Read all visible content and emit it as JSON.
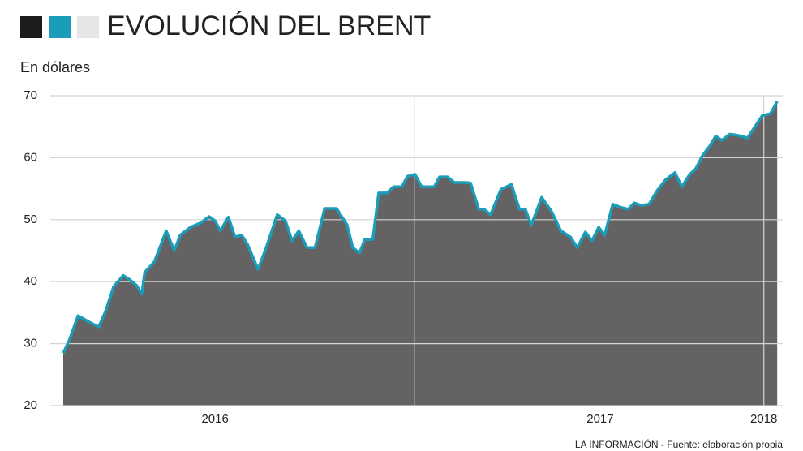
{
  "chart_data": {
    "type": "area",
    "title": "EVOLUCIÓN DEL BRENT",
    "subtitle": "En dólares",
    "source": "LA INFORMACIÓN - Fuente: elaboración propia",
    "color": "#1b9dba",
    "fill": "#656264",
    "x": [
      0,
      0.8,
      2.0,
      3.5,
      4.8,
      5.7,
      6.8,
      8.1,
      9.0,
      9.9,
      10.6,
      11.0,
      12.3,
      13.9,
      15.0,
      15.8,
      17.2,
      18.6,
      19.7,
      20.5,
      21.2,
      22.3,
      23.2,
      24.1,
      24.9,
      26.3,
      27.4,
      28.9,
      30.0,
      30.9,
      31.8,
      32.9,
      34.0,
      35.3,
      36.9,
      38.3,
      39.1,
      40.0,
      40.7,
      41.8,
      42.6,
      43.7,
      44.6,
      45.7,
      46.5,
      47.5,
      48.4,
      50.1,
      50.8,
      51.9,
      52.8,
      54.4,
      55.0,
      56.1,
      56.8,
      57.7,
      59.1,
      60.5,
      61.6,
      62.4,
      63.2,
      64.6,
      65.9,
      67.2,
      68.5,
      69.4,
      70.5,
      71.4,
      72.3,
      73.1,
      74.2,
      75.2,
      76.3,
      77.1,
      78.0,
      79.1,
      80.2,
      81.3,
      82.6,
      83.5,
      84.6,
      85.4,
      86.3,
      87.3,
      88.1,
      88.9,
      90.0,
      91.1,
      92.4,
      93.5,
      94.4,
      95.5,
      96.4
    ],
    "values": [
      28.5,
      30.5,
      34.5,
      33.5,
      32.7,
      35.2,
      39.2,
      41,
      40.3,
      39.4,
      38,
      41.5,
      43.2,
      48.2,
      45,
      47.5,
      48.8,
      49.5,
      50.5,
      49.8,
      48.2,
      50.4,
      47.2,
      47.5,
      46,
      42,
      45.5,
      50.8,
      49.8,
      46.6,
      48.2,
      45.5,
      45.5,
      51.8,
      51.8,
      49.2,
      45.5,
      44.6,
      46.8,
      46.8,
      54.3,
      54.3,
      55.3,
      55.3,
      57,
      57.3,
      55.3,
      55.3,
      56.9,
      56.9,
      56,
      56,
      55.9,
      51.7,
      51.7,
      50.8,
      54.9,
      55.7,
      51.7,
      51.7,
      49.1,
      53.6,
      51.4,
      48.2,
      47.2,
      45.5,
      48,
      46.6,
      48.8,
      47.5,
      52.5,
      52,
      51.7,
      52.7,
      52.3,
      52.5,
      54.7,
      56.4,
      57.6,
      55.3,
      57.3,
      58.2,
      60.3,
      61.9,
      63.5,
      62.8,
      63.8,
      63.6,
      63.2,
      65.2,
      66.8,
      67.1,
      69.1
    ],
    "xlim": [
      -1.75,
      97.15
    ],
    "xticks": [
      {
        "value": 20.5,
        "label": "2016"
      },
      {
        "value": 72.5,
        "label": "2017"
      },
      {
        "value": 94.6,
        "label": "2018"
      }
    ],
    "xgrid": [
      47.4,
      94.6
    ],
    "ylim": [
      20,
      70
    ],
    "yticks": [
      20,
      30,
      40,
      50,
      60,
      70
    ],
    "grid": true
  }
}
